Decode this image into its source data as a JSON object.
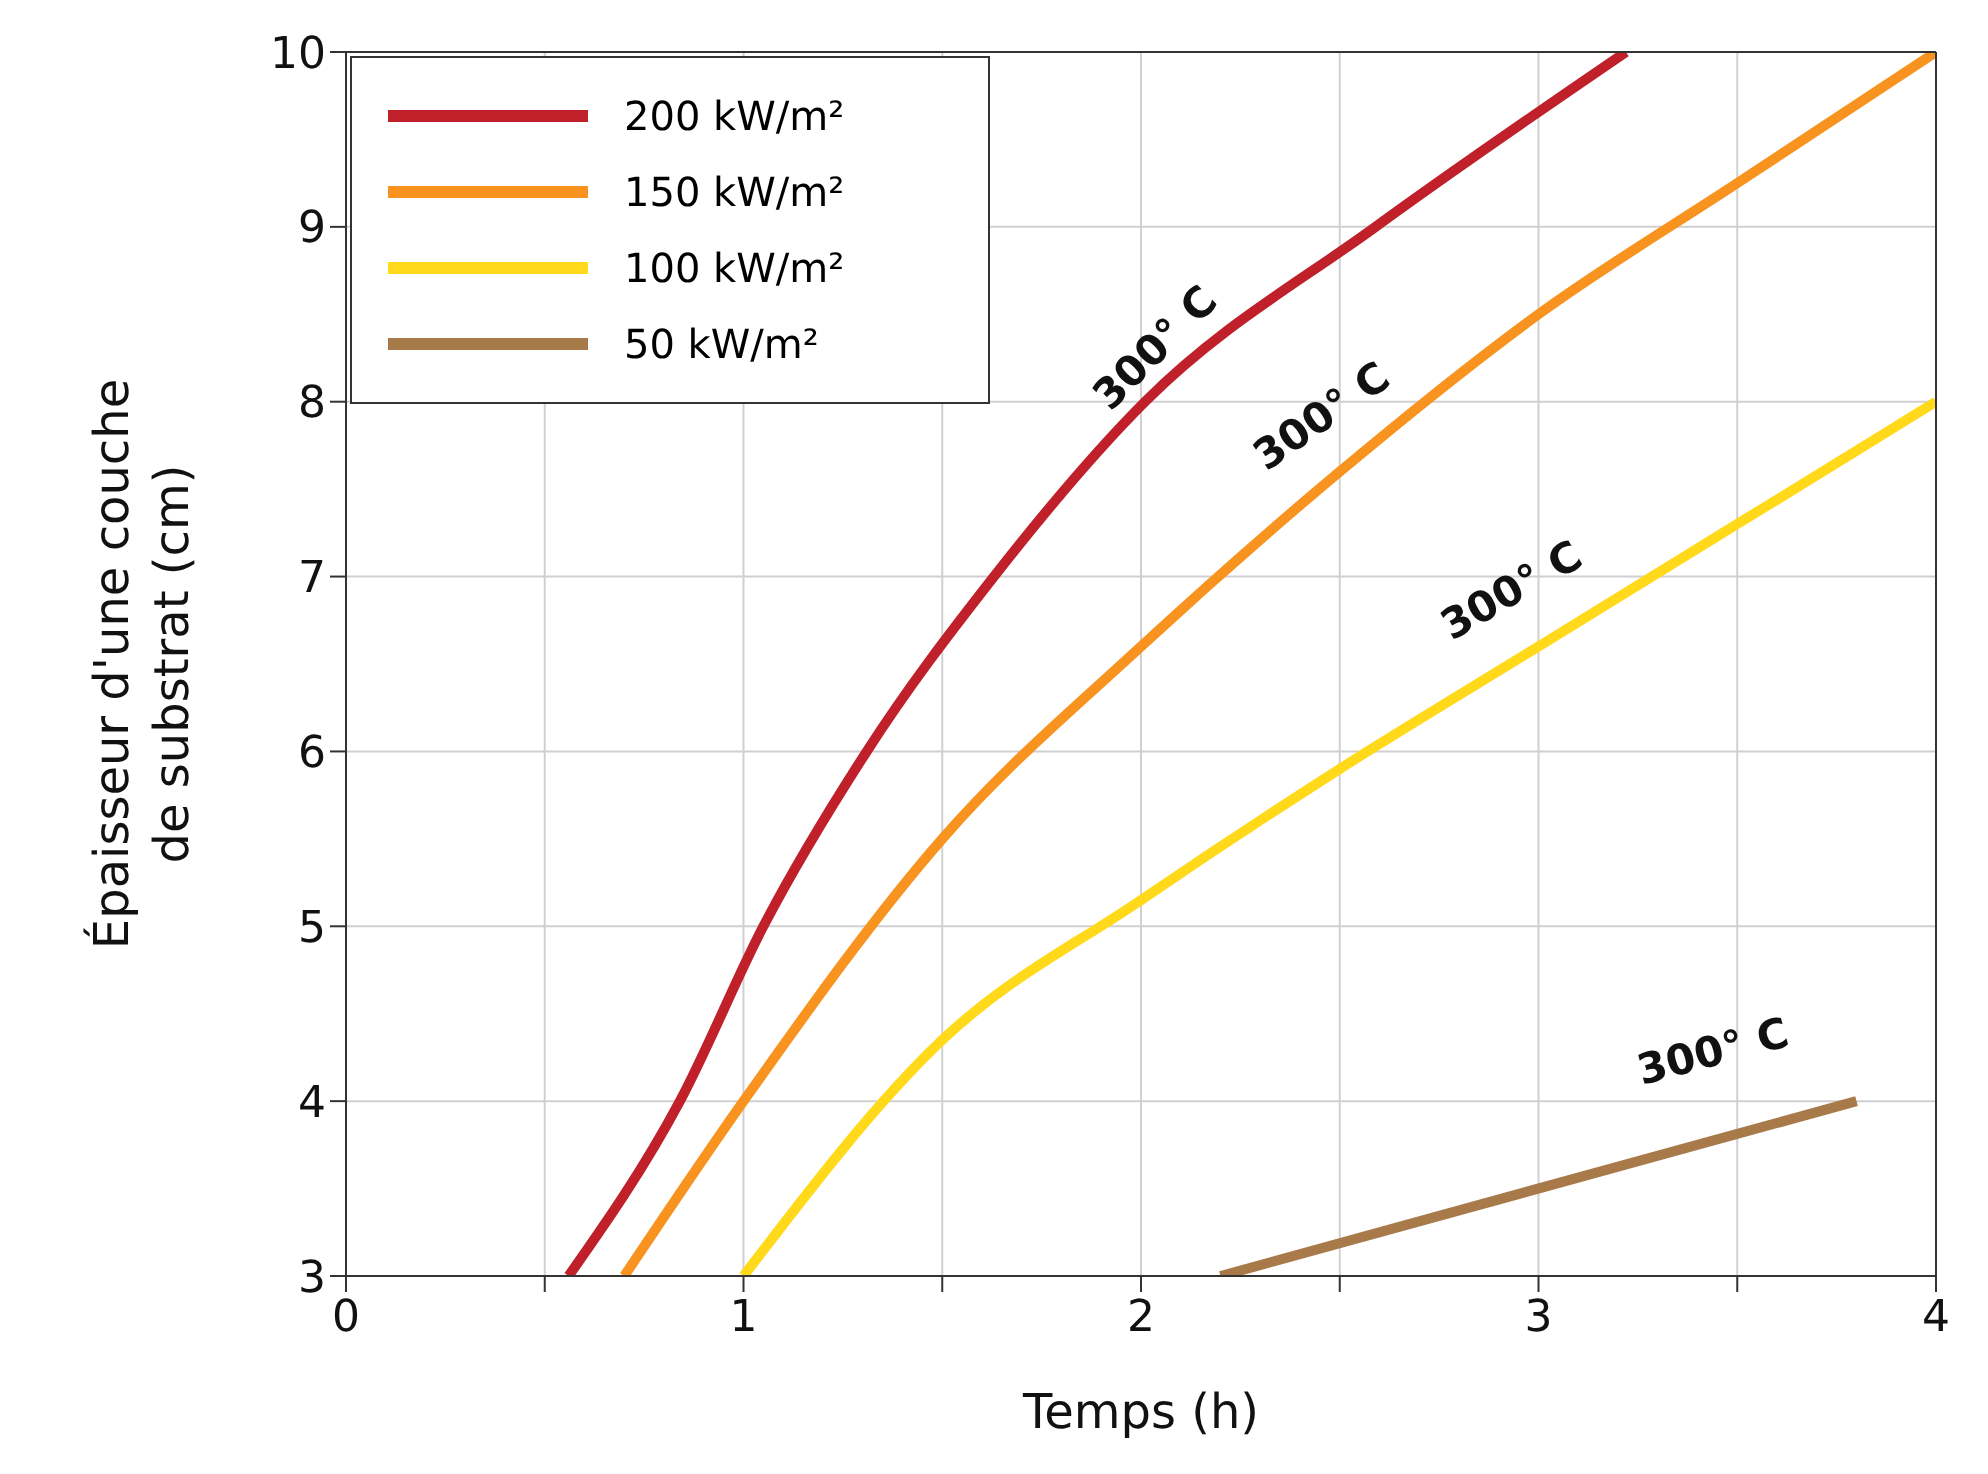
{
  "chart_data": {
    "type": "line",
    "xlabel": "Temps (h)",
    "ylabel": "Épaisseur d'une couche de substrat (cm)",
    "xlim": [
      0,
      4
    ],
    "xticks": [
      0,
      {
        "value": 0.5,
        "label": null
      },
      1,
      {
        "value": 1.5,
        "label": null
      },
      2,
      {
        "value": 2.5,
        "label": null
      },
      3,
      {
        "value": 3.5,
        "label": null
      },
      4
    ],
    "ylim": [
      3,
      10
    ],
    "yticks": [
      3,
      4,
      5,
      6,
      7,
      8,
      9,
      10
    ],
    "grid": true,
    "legend": "top left",
    "marker": "none",
    "line_style": "solid",
    "series": [
      {
        "name": "200 kW/m²",
        "color": "#c0202a",
        "x": [
          0.56,
          0.84,
          1.05,
          1.31,
          1.63,
          2.01,
          2.59,
          3.22
        ],
        "values": [
          3,
          4,
          5,
          6,
          7,
          8,
          9,
          10
        ]
      },
      {
        "name": "150 kW/m²",
        "color": "#f7931e",
        "x": [
          0.7,
          1.0,
          1.5,
          2.0,
          2.5,
          3.0,
          3.5,
          4.0
        ],
        "values": [
          3,
          4.0,
          5.5,
          6.6,
          7.6,
          8.5,
          9.25,
          10
        ]
      },
      {
        "name": "100 kW/m²",
        "color": "#ffd91a",
        "x": [
          1.0,
          1.5,
          2.0,
          2.5,
          3.0,
          3.5,
          4.0
        ],
        "values": [
          3,
          4.35,
          5.15,
          5.9,
          6.6,
          7.3,
          8.0
        ]
      },
      {
        "name": "50 kW/m²",
        "color": "#a87a4a",
        "x": [
          2.2,
          3.8
        ],
        "values": [
          3,
          4
        ]
      }
    ],
    "annotations": [
      "300° C",
      "300° C",
      "300° C",
      "300° C"
    ]
  }
}
